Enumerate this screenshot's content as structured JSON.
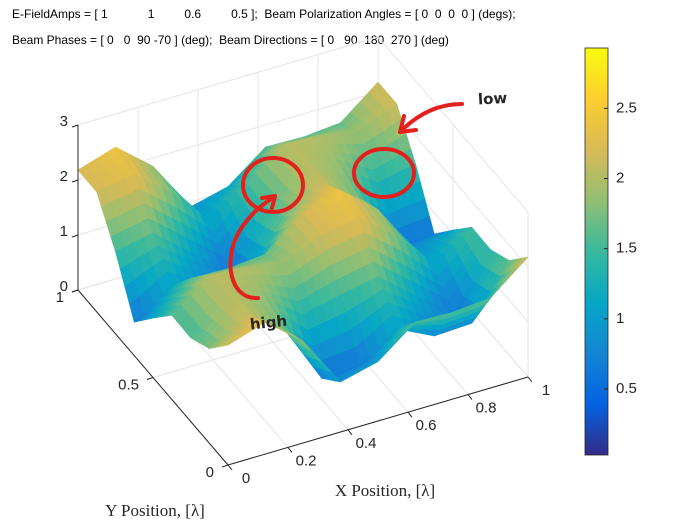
{
  "chart_data": {
    "type": "surface",
    "title": [
      "E-FieldAmps = [ 1            1         0.6         0.5 ];  Beam Polarization Angles = [ 0  0  0  0 ] (degs);",
      "Beam Phases = [ 0   0  90 -70 ] (deg);  Beam Directions = [ 0   90  180  270 ] (deg)"
    ],
    "x": [
      0,
      0.125,
      0.25,
      0.375,
      0.5,
      0.625,
      0.75,
      0.875,
      1
    ],
    "y": [
      0,
      0.125,
      0.25,
      0.375,
      0.5,
      0.625,
      0.75,
      0.875,
      1
    ],
    "z": [
      [
        2.18,
        2.4,
        1.85,
        0.91,
        1.08,
        1.6,
        1.58,
        1.64,
        2.18
      ],
      [
        1.72,
        2.14,
        1.67,
        0.58,
        0.61,
        1.08,
        0.75,
        0.78,
        1.72
      ],
      [
        1.52,
        2.07,
        1.83,
        1.34,
        1.49,
        1.63,
        1.08,
        0.58,
        1.52
      ],
      [
        1.53,
        2.05,
        2.0,
        1.88,
        2.18,
        2.3,
        1.76,
        1.08,
        1.53
      ],
      [
        1.08,
        1.6,
        1.58,
        1.64,
        2.18,
        2.4,
        1.85,
        0.91,
        1.08
      ],
      [
        0.61,
        1.08,
        0.75,
        0.78,
        1.72,
        2.14,
        1.67,
        0.58,
        0.61
      ],
      [
        1.49,
        1.63,
        1.08,
        0.58,
        1.52,
        2.07,
        1.83,
        1.34,
        1.49
      ],
      [
        2.18,
        2.3,
        1.76,
        1.08,
        1.53,
        2.05,
        2.0,
        1.88,
        2.18
      ],
      [
        2.18,
        2.4,
        1.85,
        0.91,
        1.08,
        1.6,
        1.58,
        1.64,
        2.18
      ]
    ],
    "xlim": [
      0,
      1
    ],
    "ylim": [
      0,
      1
    ],
    "zlim": [
      0,
      3
    ],
    "xticks": [
      0,
      0.2,
      0.4,
      0.6,
      0.8,
      1
    ],
    "yticks": [
      0,
      0.5,
      1
    ],
    "zticks": [
      0,
      1,
      2,
      3
    ],
    "xlabel": "X Position, [λ]",
    "ylabel": "Y Position, [λ]",
    "grid": true,
    "clim": [
      0.03,
      2.93
    ],
    "cticks": [
      0.5,
      1,
      1.5,
      2,
      2.5
    ],
    "colormap": [
      "#352a87",
      "#0363e1",
      "#1485d4",
      "#06a7c6",
      "#38b99e",
      "#92bf73",
      "#d9ba56",
      "#fcce2e",
      "#f9fb0e"
    ],
    "annotations": [
      {
        "text": "low",
        "color": "#e3201c"
      },
      {
        "text": "high",
        "color": "#e3201c"
      }
    ]
  }
}
